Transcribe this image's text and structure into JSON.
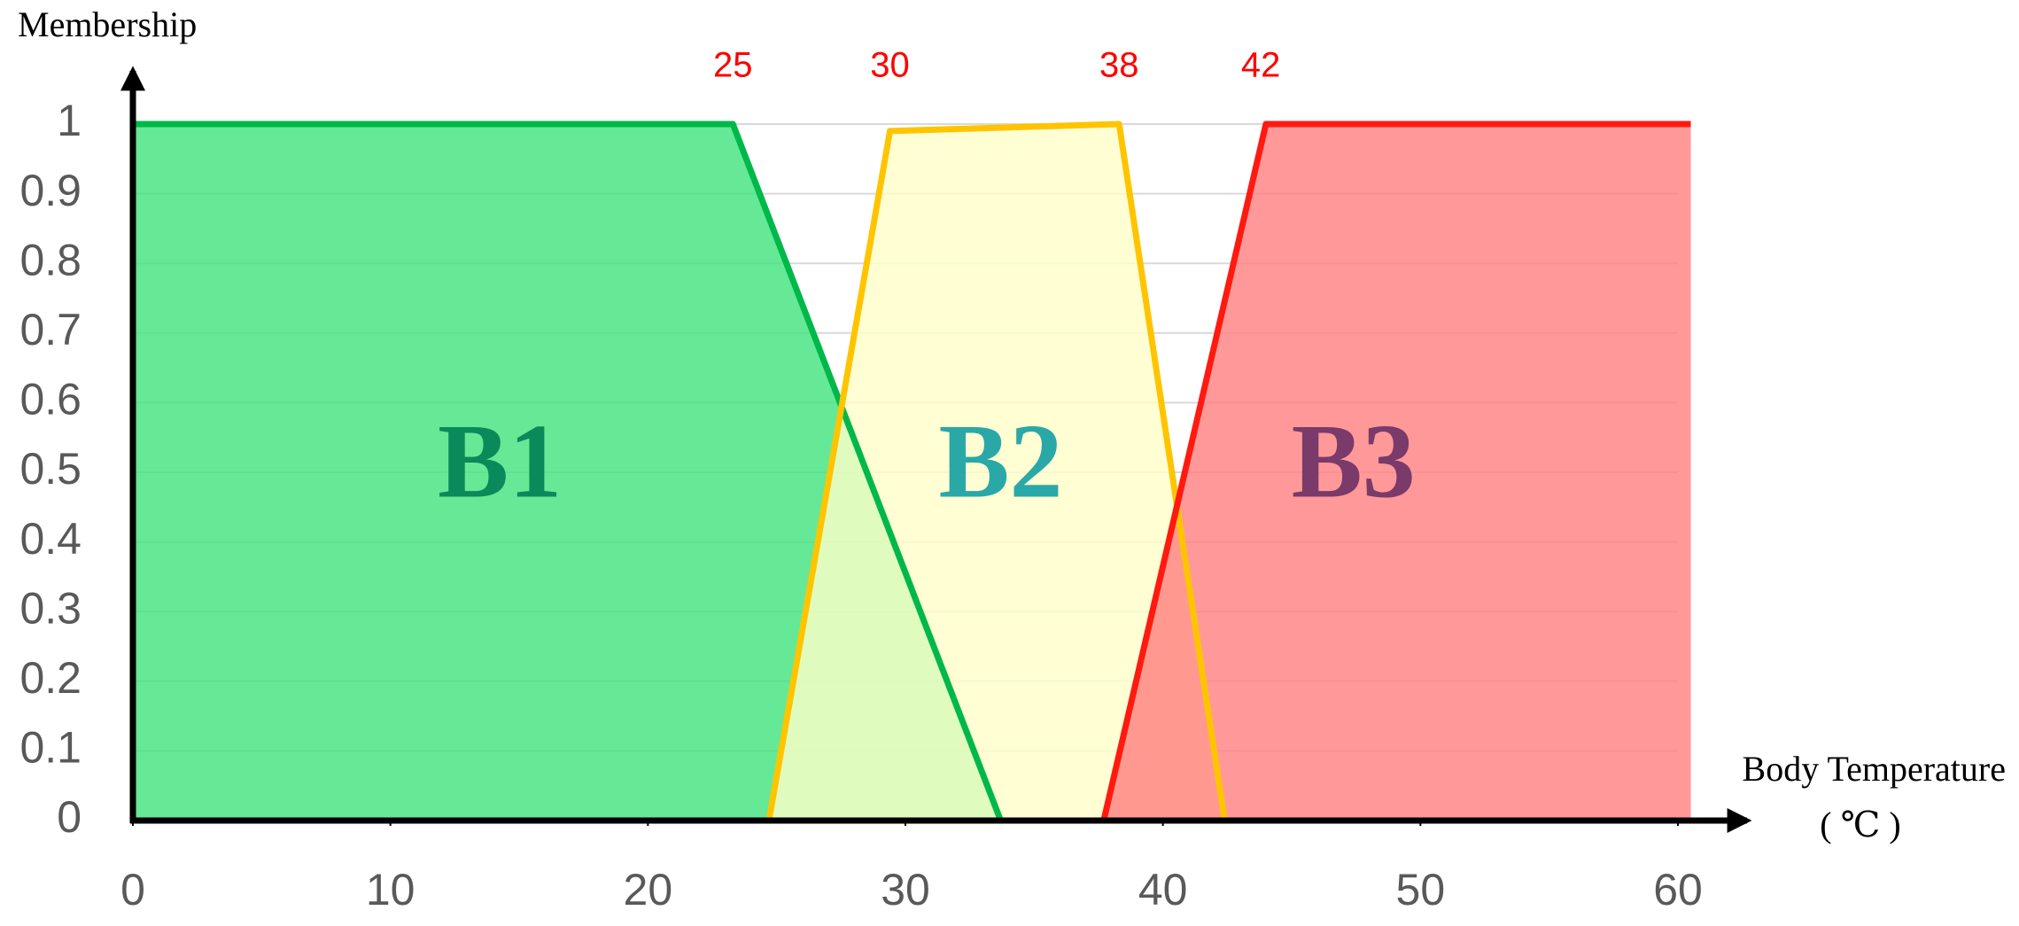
{
  "chart_data": {
    "type": "area",
    "y_label": "Membership",
    "x_label": [
      "Body Temperature",
      "( ℃ )"
    ],
    "xlim": [
      0,
      60
    ],
    "ylim": [
      0,
      1
    ],
    "xticks": [
      0,
      10,
      20,
      30,
      40,
      50,
      60
    ],
    "yticks": [
      0,
      0.1,
      0.2,
      0.3,
      0.4,
      0.5,
      0.6,
      0.7,
      0.8,
      0.9,
      1
    ],
    "grid": true,
    "annotations": [
      {
        "text": "25",
        "x": 23.3
      },
      {
        "text": "30",
        "x": 29.4
      },
      {
        "text": "38",
        "x": 38.3
      },
      {
        "text": "42",
        "x": 43.8
      }
    ],
    "series": [
      {
        "name": "B1",
        "color": "#00b84a",
        "fill": "#3fe47c",
        "label_color": "#0a8a5a",
        "x": [
          0,
          0,
          23.3,
          33.7
        ],
        "values": [
          0,
          1,
          1,
          0
        ]
      },
      {
        "name": "B2",
        "color": "#ffc400",
        "fill": "#ffffc8",
        "label_color": "#2aa8a8",
        "x": [
          24.7,
          29.4,
          38.3,
          42.4
        ],
        "values": [
          0,
          0.99,
          1,
          0
        ]
      },
      {
        "name": "B3",
        "color": "#ff1a10",
        "fill": "#ff8080",
        "label_color": "#7a3a6a",
        "x": [
          37.7,
          44,
          60.5
        ],
        "values": [
          0,
          1,
          1
        ]
      }
    ]
  }
}
